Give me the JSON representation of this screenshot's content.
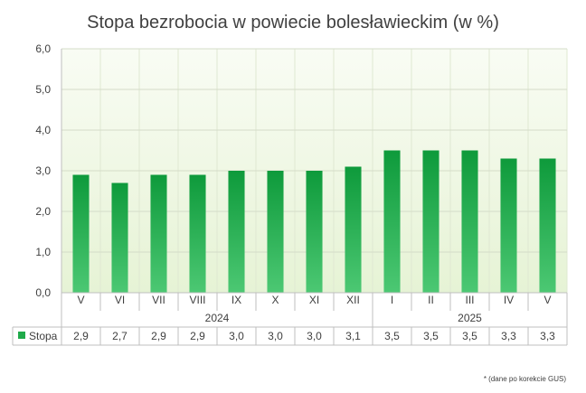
{
  "chart_data": {
    "type": "bar",
    "title": "Stopa bezrobocia w powiecie bolesławieckim (w %)",
    "categories": [
      "V",
      "VI",
      "VII",
      "VIII",
      "IX",
      "X",
      "XI",
      "XII",
      "I",
      "II",
      "III",
      "IV",
      "V"
    ],
    "year_groups": [
      {
        "label": "2024",
        "from": 0,
        "to": 7
      },
      {
        "label": "2025",
        "from": 8,
        "to": 12
      }
    ],
    "series": [
      {
        "name": "Stopa",
        "color": "#1faa4a",
        "values": [
          2.9,
          2.7,
          2.9,
          2.9,
          3.0,
          3.0,
          3.0,
          3.1,
          3.5,
          3.5,
          3.5,
          3.3,
          3.3
        ],
        "value_labels": [
          "2,9",
          "2,7",
          "2,9",
          "2,9",
          "3,0",
          "3,0",
          "3,0",
          "3,1",
          "3,5",
          "3,5",
          "3,5",
          "3,3",
          "3,3"
        ]
      }
    ],
    "ylim": [
      0,
      6
    ],
    "yticks": [
      "0,0",
      "1,0",
      "2,0",
      "3,0",
      "4,0",
      "5,0",
      "6,0"
    ],
    "grid": true,
    "legend": "data-table"
  },
  "footnote": "* (dane po korekcie GUS)"
}
